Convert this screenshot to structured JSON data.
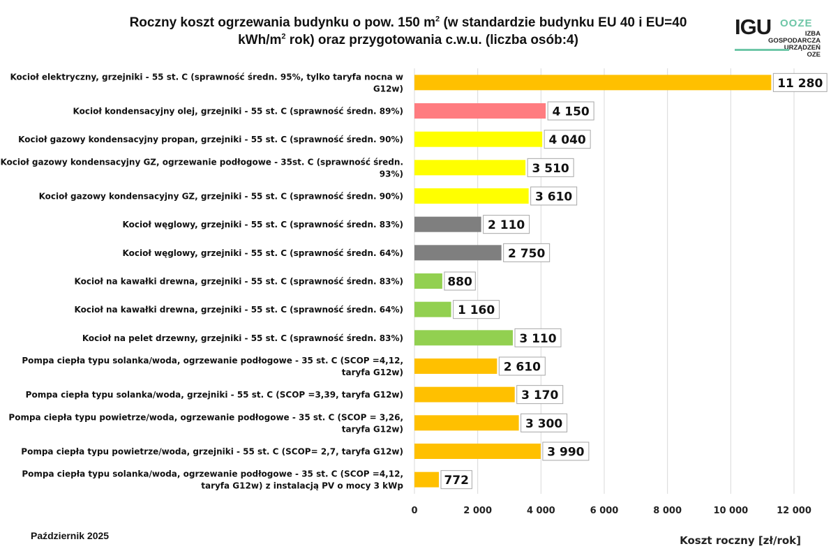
{
  "title": {
    "line1_a": "Roczny koszt ogrzewania budynku o pow. 150 m",
    "line1_sup": "2",
    "line1_b": " (w standardzie budynku EU 40 i EU=40",
    "line2_a": "kWh/m",
    "line2_sup": "2",
    "line2_b": " rok) oraz przygotowania c.w.u. (liczba osób:4)"
  },
  "logo": {
    "main": "IGU",
    "accent": "OOZE",
    "sub": [
      "IZBA",
      "GOSPODARCZA",
      "URZĄDZEŃ",
      "OZE"
    ]
  },
  "footer": "Październik 2025",
  "colors": {
    "orange": "#FFC000",
    "red": "#FF7C80",
    "yellow": "#FFFF00",
    "gray": "#7F7F7F",
    "green": "#92D050",
    "grid": "#D9D9D9"
  },
  "chart_data": {
    "type": "bar",
    "orientation": "horizontal",
    "title": "Roczny koszt ogrzewania budynku o pow. 150 m2 (w standardzie budynku EU 40 i EU=40 kWh/m2 rok) oraz przygotowania c.w.u. (liczba osób:4)",
    "xlabel": "Koszt roczny [zł/rok]",
    "ylabel": "",
    "xlim": [
      0,
      12000
    ],
    "grid": true,
    "ticks": [
      "0",
      "2 000",
      "4 000",
      "6 000",
      "8 000",
      "10 000",
      "12 000"
    ],
    "categories": [
      [
        "Kocioł  elektryczny,  grzejniki - 55 st. C  (sprawność średn. 95%, tylko taryfa nocna w",
        "G12w)"
      ],
      [
        "Kocioł  kondensacyjny olej,  grzejniki - 55 st. C  (sprawność średn. 89%)"
      ],
      [
        "Kocioł gazowy kondensacyjny propan, grzejniki - 55 st. C  (sprawność średn. 90%)"
      ],
      [
        "Kocioł gazowy kondensacyjny GZ, ogrzewanie podłogowe - 35st. C   (sprawność średn.",
        "93%)"
      ],
      [
        "Kocioł gazowy kondensacyjny GZ, grzejniki - 55 st. C   (sprawność średn. 90%)"
      ],
      [
        "Kocioł węglowy,  grzejniki - 55 st. C   (sprawność średn. 83%)"
      ],
      [
        "Kocioł węglowy,  grzejniki - 55 st. C  (sprawność średn. 64%)"
      ],
      [
        "Kocioł na kawałki drewna, grzejniki - 55 st. C (sprawność średn. 83%)"
      ],
      [
        "Kocioł na kawałki drewna, grzejniki - 55 st. C  (sprawność średn. 64%)"
      ],
      [
        "Kocioł na pelet drzewny, grzejniki - 55 st. C (sprawność średn. 83%)"
      ],
      [
        "Pompa ciepła typu solanka/woda, ogrzewanie podłogowe - 35 st. C  (SCOP =4,12,",
        "taryfa G12w)"
      ],
      [
        "Pompa ciepła typu solanka/woda, grzejniki - 55 st. C (SCOP =3,39, taryfa G12w)"
      ],
      [
        "Pompa ciepła typu powietrze/woda, ogrzewanie podłogowe - 35 st. C (SCOP = 3,26,",
        "taryfa G12w)"
      ],
      [
        "Pompa ciepła typu powietrze/woda, grzejniki - 55 st. C (SCOP= 2,7, taryfa G12w)"
      ],
      [
        "Pompa ciepła typu solanka/woda, ogrzewanie podłogowe - 35 st. C  (SCOP =4,12,",
        "taryfa G12w) z instalacją PV o mocy 3 kWp"
      ]
    ],
    "values": [
      11280,
      4150,
      4040,
      3510,
      3610,
      2110,
      2750,
      880,
      1160,
      3110,
      2610,
      3170,
      3300,
      3990,
      772
    ],
    "value_labels": [
      "11 280",
      "4 150",
      "4 040",
      "3 510",
      "3 610",
      "2 110",
      "2 750",
      "880",
      "1 160",
      "3 110",
      "2 610",
      "3 170",
      "3 300",
      "3 990",
      "772"
    ],
    "bar_colors": [
      "orange",
      "red",
      "yellow",
      "yellow",
      "yellow",
      "gray",
      "gray",
      "green",
      "green",
      "green",
      "orange",
      "orange",
      "orange",
      "orange",
      "orange"
    ]
  }
}
